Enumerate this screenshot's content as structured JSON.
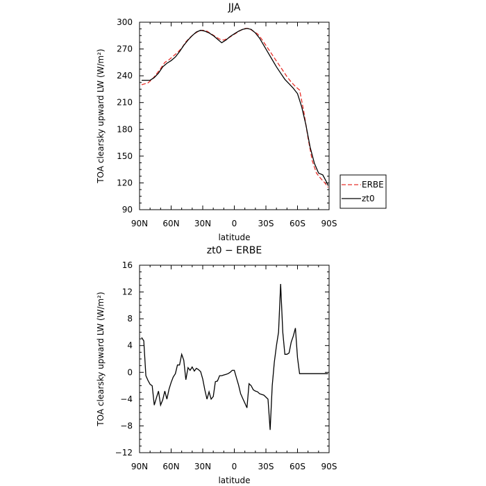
{
  "chart_data": [
    {
      "type": "line",
      "title": "JJA",
      "xlabel": "latitude",
      "ylabel": "TOA clearsky upward LW (W/m²)",
      "xlim": [
        90,
        -90
      ],
      "ylim": [
        90,
        300
      ],
      "x_ticks": [
        90,
        60,
        30,
        0,
        -30,
        -60,
        -90
      ],
      "x_tick_labels": [
        "90N",
        "60N",
        "30N",
        "0",
        "30S",
        "60S",
        "90S"
      ],
      "y_ticks": [
        90,
        120,
        150,
        180,
        210,
        240,
        270,
        300
      ],
      "y_tick_labels": [
        "90",
        "120",
        "150",
        "180",
        "210",
        "240",
        "270",
        "300"
      ],
      "grid": false,
      "legend_position": "right",
      "series": [
        {
          "name": "ERBE",
          "color": "#e8302a",
          "dash": "dashed",
          "x": [
            88,
            82,
            78,
            74,
            70,
            66,
            62,
            58,
            54,
            50,
            46,
            42,
            38,
            34,
            30,
            26,
            22,
            18,
            14,
            10,
            6,
            2,
            -2,
            -6,
            -10,
            -14,
            -18,
            -22,
            -26,
            -30,
            -34,
            -38,
            -42,
            -46,
            -50,
            -54,
            -58,
            -62,
            -66,
            -70,
            -74,
            -78,
            -82,
            -86,
            -89
          ],
          "values": [
            230,
            232,
            236,
            242,
            248,
            255,
            258,
            262,
            266,
            271,
            278,
            283,
            287,
            290,
            291,
            290,
            287,
            284,
            281,
            280,
            282,
            285,
            288,
            291,
            293,
            293,
            290,
            287,
            281,
            274,
            267,
            260,
            253,
            246,
            239,
            233,
            228,
            224,
            200,
            170,
            145,
            131,
            125,
            120,
            115
          ]
        },
        {
          "name": "zt0",
          "color": "#000000",
          "dash": "solid",
          "x": [
            88,
            84,
            80,
            76,
            72,
            68,
            64,
            60,
            56,
            52,
            48,
            44,
            40,
            36,
            32,
            28,
            24,
            20,
            16,
            12,
            8,
            4,
            0,
            -4,
            -8,
            -12,
            -16,
            -20,
            -24,
            -28,
            -32,
            -36,
            -40,
            -44,
            -48,
            -52,
            -56,
            -60,
            -64,
            -68,
            -72,
            -76,
            -80,
            -84,
            -88,
            -89
          ],
          "values": [
            235,
            235,
            235,
            238,
            243,
            250,
            254,
            257,
            261,
            267,
            274,
            280,
            285,
            289,
            291,
            290,
            288,
            285,
            281,
            277,
            280,
            284,
            287,
            290,
            292,
            293,
            292,
            288,
            282,
            274,
            266,
            258,
            250,
            243,
            236,
            231,
            226,
            220,
            205,
            185,
            160,
            142,
            131,
            129,
            120,
            117
          ]
        }
      ]
    },
    {
      "type": "line",
      "title": "zt0 − ERBE",
      "xlabel": "latitude",
      "ylabel": "TOA clearsky upward LW (W/m²)",
      "xlim": [
        90,
        -90
      ],
      "ylim": [
        -12,
        16
      ],
      "x_ticks": [
        90,
        60,
        30,
        0,
        -30,
        -60,
        -90
      ],
      "x_tick_labels": [
        "90N",
        "60N",
        "30N",
        "0",
        "30S",
        "60S",
        "90S"
      ],
      "y_ticks": [
        -12,
        -8,
        -4,
        0,
        4,
        8,
        12,
        16
      ],
      "y_tick_labels": [
        "−12",
        "−8",
        "−4",
        "0",
        "4",
        "8",
        "12",
        "16"
      ],
      "grid": false,
      "series": [
        {
          "name": "",
          "color": "#000000",
          "dash": "solid",
          "x": [
            88,
            86,
            84,
            82,
            80,
            78,
            76,
            74,
            72,
            70,
            68,
            66,
            64,
            62,
            60,
            58,
            56,
            54,
            52,
            50,
            48,
            46,
            44,
            42,
            40,
            38,
            36,
            34,
            32,
            30,
            28,
            26,
            24,
            22,
            20,
            18,
            16,
            14,
            12,
            10,
            8,
            6,
            4,
            2,
            0,
            -2,
            -4,
            -6,
            -8,
            -10,
            -12,
            -14,
            -16,
            -18,
            -20,
            -22,
            -24,
            -26,
            -28,
            -30,
            -32,
            -34,
            -36,
            -38,
            -40,
            -42,
            -44,
            -46,
            -48,
            -50,
            -52,
            -54,
            -56,
            -58,
            -60,
            -62,
            -64,
            -66,
            -68,
            -70,
            -72,
            -74,
            -76,
            -78,
            -80,
            -82,
            -84,
            -86,
            -88,
            -89
          ],
          "values": [
            5.2,
            4.7,
            -0.5,
            -1.2,
            -1.8,
            -2.0,
            -4.9,
            -3.8,
            -2.8,
            -4.9,
            -4.1,
            -2.8,
            -4.0,
            -2.5,
            -1.5,
            -0.7,
            -0.2,
            1.1,
            1.1,
            2.7,
            1.8,
            -1.1,
            0.7,
            0.3,
            0.8,
            0.2,
            0.6,
            0.4,
            0.1,
            -1.0,
            -2.6,
            -4.0,
            -2.9,
            -4.0,
            -3.6,
            -1.4,
            -1.3,
            -0.5,
            -0.5,
            -0.4,
            -0.3,
            -0.2,
            0.0,
            0.3,
            0.3,
            -0.8,
            -1.9,
            -3.2,
            -3.9,
            -4.6,
            -5.3,
            -1.7,
            -2.0,
            -2.6,
            -2.8,
            -2.9,
            -3.2,
            -3.3,
            -3.4,
            -3.7,
            -4.0,
            -8.6,
            -2.0,
            1.5,
            4.0,
            6.0,
            13.2,
            6.0,
            2.7,
            2.7,
            2.9,
            4.5,
            5.4,
            6.6,
            2.2,
            -0.2,
            -0.2,
            -0.2,
            -0.2,
            -0.2,
            -0.2,
            -0.2,
            -0.2,
            -0.2,
            -0.2,
            -0.2,
            -0.2,
            -0.2,
            -0.2,
            -0.2
          ]
        }
      ]
    }
  ]
}
